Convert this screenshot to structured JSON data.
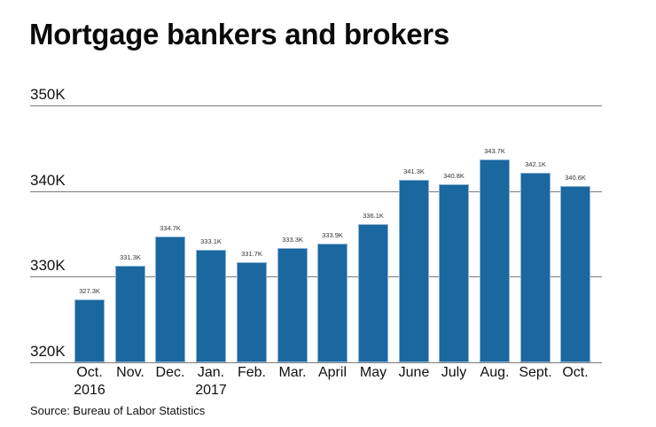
{
  "title": "Mortgage bankers and brokers",
  "source": "Source: Bureau of Labor Statistics",
  "colors": {
    "bar": "#1b67a0",
    "bar_edge": "#8ab3d4",
    "grid": "#7a7a7a"
  },
  "chart_data": {
    "type": "bar",
    "title": "Mortgage bankers and brokers",
    "xlabel": "",
    "ylabel": "",
    "ylim": [
      320,
      350
    ],
    "y_unit": "thousands",
    "yticks": [
      "320K",
      "330K",
      "340K",
      "350K"
    ],
    "grid": true,
    "legend": null,
    "categories": [
      "Oct. 2016",
      "Nov.",
      "Dec.",
      "Jan. 2017",
      "Feb.",
      "Mar.",
      "April",
      "May",
      "June",
      "July",
      "Aug.",
      "Sept.",
      "Oct."
    ],
    "values": [
      327.3,
      331.3,
      334.7,
      333.1,
      331.7,
      333.3,
      333.9,
      336.1,
      341.3,
      340.8,
      343.7,
      342.1,
      340.6
    ],
    "value_labels": [
      "327.3K",
      "331.3K",
      "334.7K",
      "333.1K",
      "331.7K",
      "333.3K",
      "333.9K",
      "336.1K",
      "341.3K",
      "340.8K",
      "343.7K",
      "342.1K",
      "340.6K"
    ],
    "x_tick_lines": [
      [
        "Oct.",
        "2016"
      ],
      [
        "Nov."
      ],
      [
        "Dec."
      ],
      [
        "Jan.",
        "2017"
      ],
      [
        "Feb."
      ],
      [
        "Mar."
      ],
      [
        "April"
      ],
      [
        "May"
      ],
      [
        "June"
      ],
      [
        "July"
      ],
      [
        "Aug."
      ],
      [
        "Sept."
      ],
      [
        "Oct."
      ]
    ],
    "source": "Bureau of Labor Statistics"
  }
}
